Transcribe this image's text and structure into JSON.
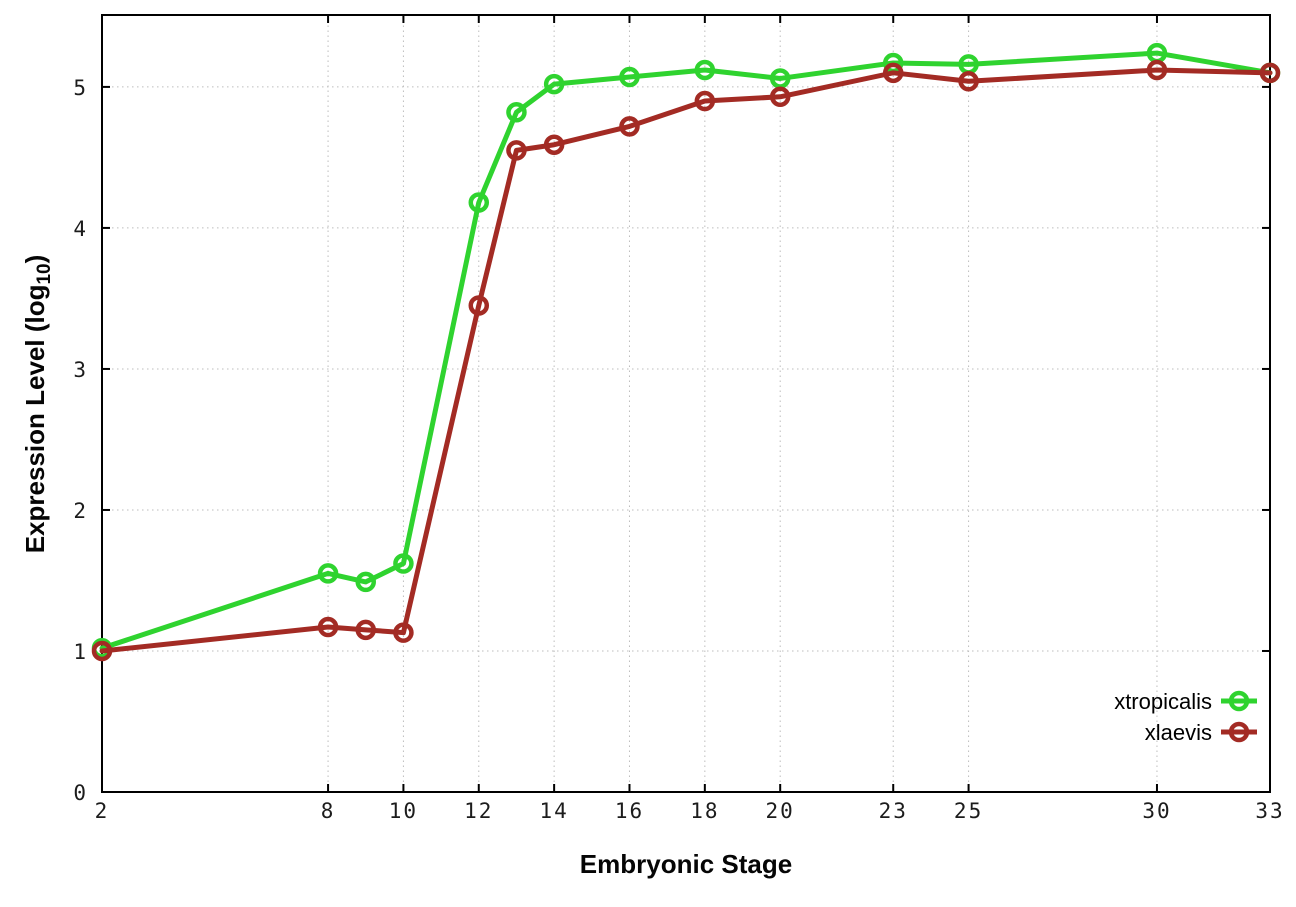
{
  "chart_data": {
    "type": "line",
    "title": "",
    "xlabel": "Embryonic Stage",
    "ylabel": "Expression Level (log10)",
    "ylabel_main": "Expression Level (log",
    "ylabel_sub": "10",
    "ylabel_close": ")",
    "x": [
      2,
      8,
      9,
      10,
      12,
      13,
      14,
      16,
      18,
      20,
      23,
      25,
      30,
      33
    ],
    "series": [
      {
        "name": "xtropicalis",
        "color": "#2fd32f",
        "marker": "open-circle",
        "values": [
          1.02,
          1.55,
          1.49,
          1.62,
          4.18,
          4.82,
          5.02,
          5.07,
          5.12,
          5.06,
          5.17,
          5.16,
          5.24,
          5.1
        ]
      },
      {
        "name": "xlaevis",
        "color": "#a32b24",
        "marker": "open-circle",
        "values": [
          1.0,
          1.17,
          1.15,
          1.13,
          3.45,
          4.55,
          4.59,
          4.72,
          4.9,
          4.93,
          5.1,
          5.04,
          5.12,
          5.1
        ]
      }
    ],
    "xticks": [
      2,
      8,
      10,
      12,
      14,
      16,
      18,
      20,
      23,
      25,
      30,
      33
    ],
    "yticks": [
      0,
      1,
      2,
      3,
      4,
      5
    ],
    "xlim": [
      2,
      33
    ],
    "ylim": [
      0,
      5.51
    ],
    "grid": true,
    "grid_color": "#bdbdbd",
    "border_color": "#000000",
    "background_color": "#ffffff",
    "legend_position": "inside-bottom-right"
  }
}
